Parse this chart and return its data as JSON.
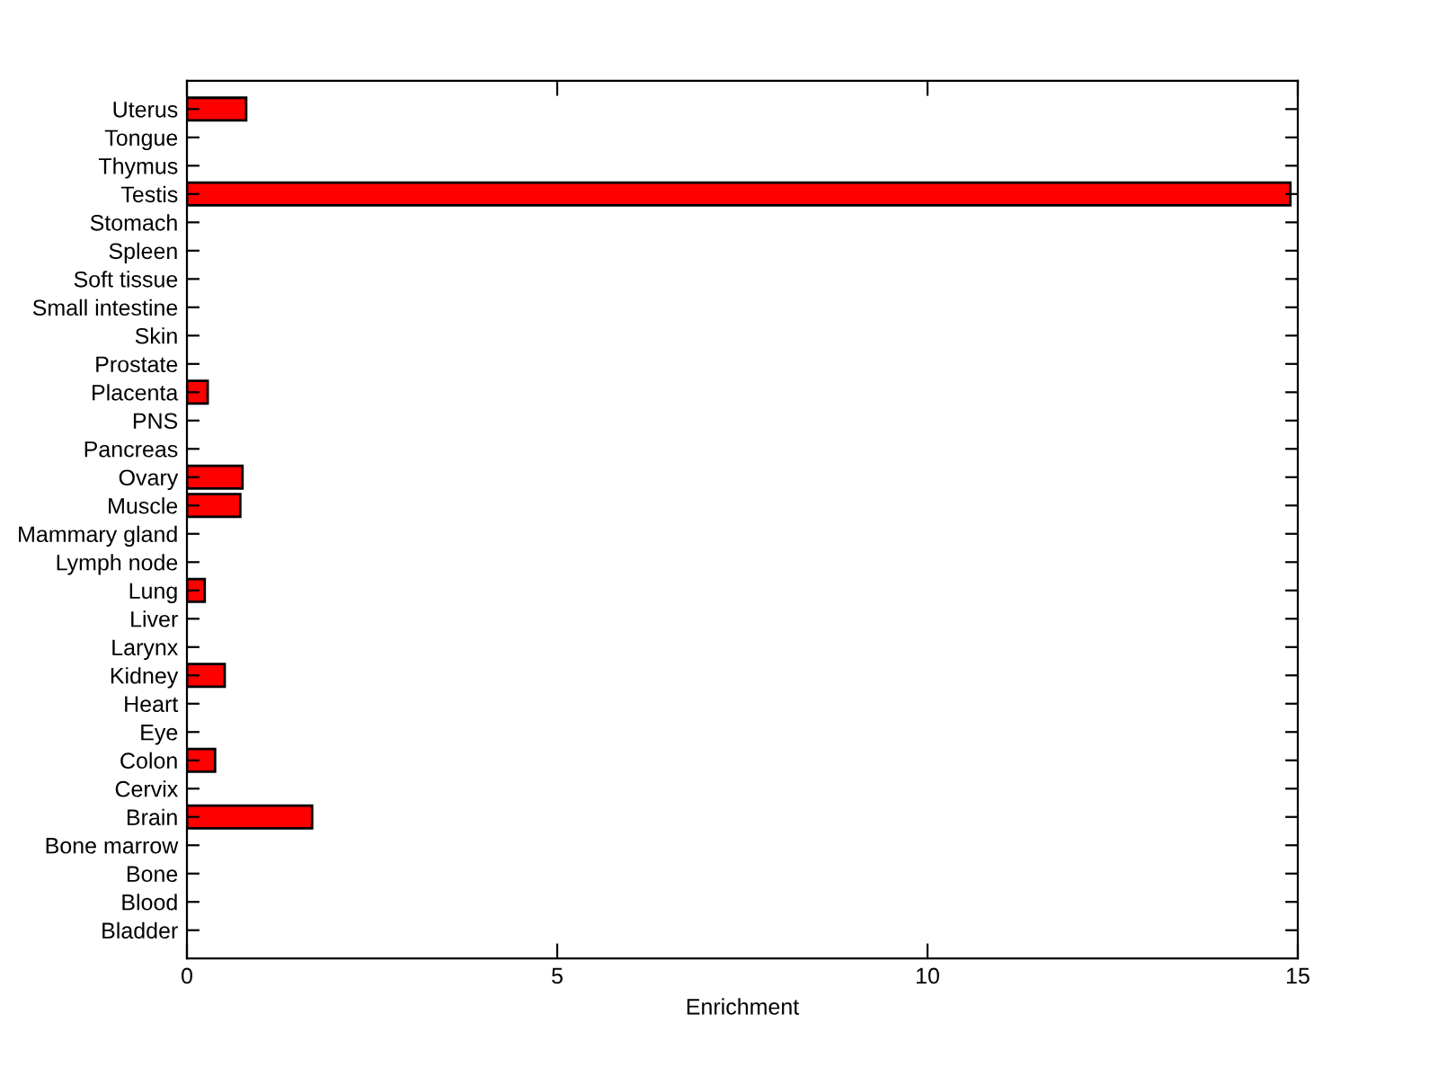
{
  "chart_data": {
    "type": "bar",
    "orientation": "horizontal",
    "xlabel": "Enrichment",
    "categories": [
      "Uterus",
      "Tongue",
      "Thymus",
      "Testis",
      "Stomach",
      "Spleen",
      "Soft tissue",
      "Small intestine",
      "Skin",
      "Prostate",
      "Placenta",
      "PNS",
      "Pancreas",
      "Ovary",
      "Muscle",
      "Mammary gland",
      "Lymph node",
      "Lung",
      "Liver",
      "Larynx",
      "Kidney",
      "Heart",
      "Eye",
      "Colon",
      "Cervix",
      "Brain",
      "Bone marrow",
      "Bone",
      "Blood",
      "Bladder"
    ],
    "values": [
      0.8,
      0,
      0,
      14.9,
      0,
      0,
      0,
      0,
      0,
      0,
      0.28,
      0,
      0,
      0.75,
      0.72,
      0,
      0,
      0.24,
      0,
      0,
      0.51,
      0,
      0,
      0.38,
      0,
      1.69,
      0,
      0,
      0,
      0
    ],
    "color": "#ff0000",
    "xlim": [
      0,
      15
    ],
    "xticks": [
      0,
      5,
      10,
      15
    ],
    "grid": false,
    "legend": false
  }
}
